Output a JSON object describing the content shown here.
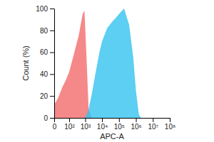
{
  "chart_data": {
    "type": "area",
    "x_label": "APC-A",
    "y_label": "Count (%)",
    "log": "x",
    "x": [
      0,
      10,
      30,
      60,
      100,
      200,
      400,
      700,
      900,
      1200,
      1600,
      2500,
      4000,
      7000,
      10000,
      20000,
      40000,
      70000,
      100000,
      200000,
      400000,
      700000,
      1000000,
      1500000,
      2000000
    ],
    "series": [
      {
        "color": "#f26b6b",
        "values": [
          12,
          18,
          28,
          35,
          42,
          58,
          75,
          95,
          98,
          55,
          8,
          0,
          0,
          0,
          0,
          0,
          0,
          0,
          0,
          0,
          0,
          0,
          0,
          0,
          0
        ]
      },
      {
        "color": "#33c3ef",
        "values": [
          0,
          0,
          0,
          0,
          0,
          0,
          0,
          0,
          0,
          3,
          8,
          22,
          40,
          60,
          70,
          82,
          88,
          92,
          95,
          100,
          85,
          55,
          25,
          3,
          0
        ]
      }
    ],
    "xlim": [
      0,
      100000000
    ],
    "xticks": [
      0,
      {
        "value": 100,
        "label": "10²"
      },
      {
        "value": 1000,
        "label": "10³"
      },
      {
        "value": 10000,
        "label": "10⁴"
      },
      {
        "value": 100000,
        "label": "10⁵"
      },
      {
        "value": 1000000,
        "label": "10⁶"
      },
      {
        "value": 10000000,
        "label": "10⁷"
      },
      {
        "value": 100000000,
        "label": "10⁸"
      }
    ],
    "ylim": [
      0,
      100
    ],
    "yticks": [
      0,
      20,
      40,
      60,
      80,
      100
    ]
  }
}
